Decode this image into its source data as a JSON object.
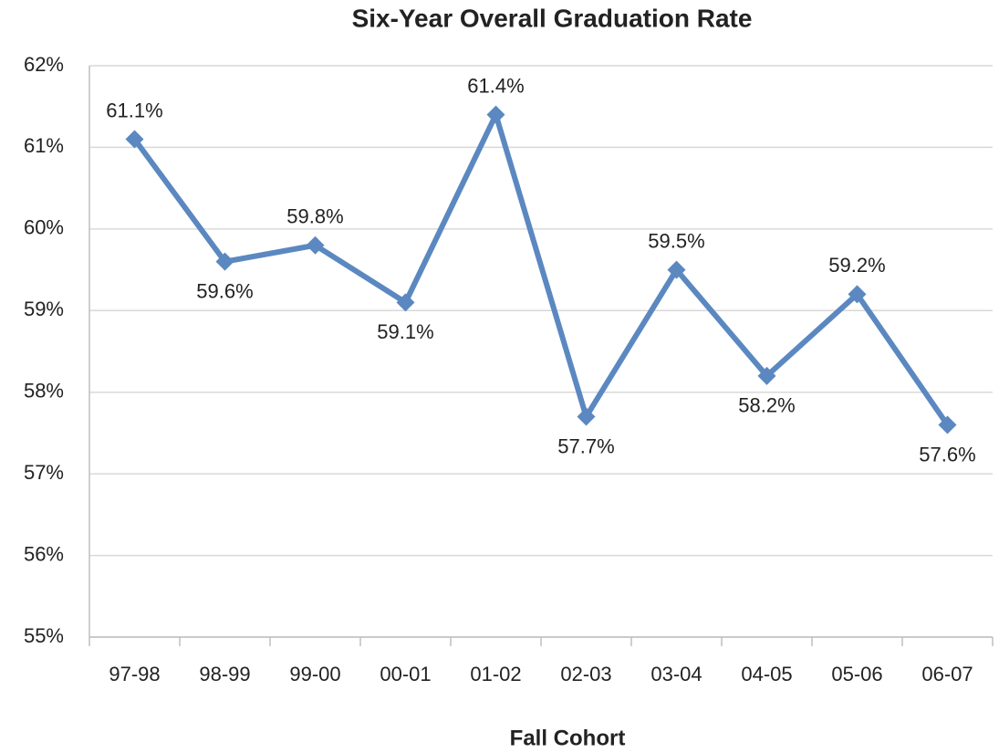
{
  "chart_data": {
    "type": "line",
    "title": "Six-Year Overall Graduation Rate",
    "x_label": "Fall Cohort",
    "categories": [
      "97-98",
      "98-99",
      "99-00",
      "00-01",
      "01-02",
      "02-03",
      "03-04",
      "04-05",
      "05-06",
      "06-07"
    ],
    "series": [
      {
        "name": "Six-Year Overall Graduation Rate",
        "color": "#5b88c0",
        "values": [
          61.1,
          59.6,
          59.8,
          59.1,
          61.4,
          57.7,
          59.5,
          58.2,
          59.2,
          57.6
        ],
        "value_labels": [
          "61.1%",
          "59.6%",
          "59.8%",
          "59.1%",
          "61.4%",
          "57.7%",
          "59.5%",
          "58.2%",
          "59.2%",
          "57.6%"
        ]
      }
    ],
    "ylim": [
      55,
      62
    ],
    "yticks": [
      {
        "value": 55,
        "label": "55%"
      },
      {
        "value": 56,
        "label": "56%"
      },
      {
        "value": 57,
        "label": "57%"
      },
      {
        "value": 58,
        "label": "58%"
      },
      {
        "value": 59,
        "label": "59%"
      },
      {
        "value": 60,
        "label": "60%"
      },
      {
        "value": 61,
        "label": "61%"
      },
      {
        "value": 62,
        "label": "62%"
      }
    ],
    "grid": true
  }
}
